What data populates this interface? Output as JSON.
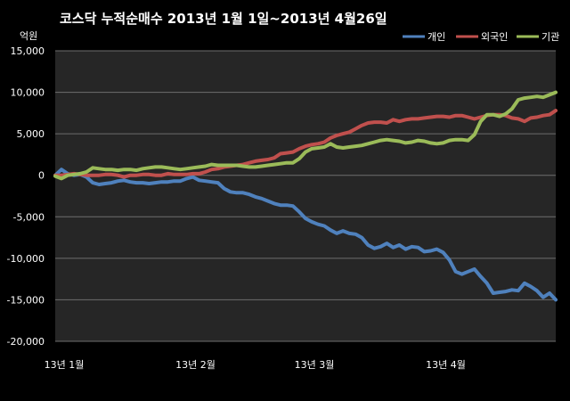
{
  "chart_data": {
    "type": "line",
    "title": "코스닥  누적순매수 2013년 1월 1일~2013년 4월26일",
    "ylabel": "억원",
    "ylim": [
      -20000,
      15000
    ],
    "yticks": [
      15000,
      10000,
      5000,
      0,
      -5000,
      -10000,
      -15000,
      -20000
    ],
    "ytick_labels": [
      "15,000",
      "10,000",
      "5,000",
      "0",
      "-5,000",
      "-10,000",
      "-15,000",
      "-20,000"
    ],
    "xlim": [
      0,
      80
    ],
    "xticks": [
      {
        "pos": 1,
        "label": "13년 1월"
      },
      {
        "pos": 22,
        "label": "13년 2월"
      },
      {
        "pos": 41,
        "label": "13년 3월"
      },
      {
        "pos": 62,
        "label": "13년 4월"
      }
    ],
    "grid": "horizontal",
    "legend_position": "top-right",
    "colors": {
      "background": "#000000",
      "plot_area": "#262626",
      "grid": "#6e6e6e"
    },
    "series": [
      {
        "name": "개인",
        "color": "#4f81bd",
        "values": [
          0,
          700,
          200,
          0,
          100,
          -200,
          -900,
          -1100,
          -1000,
          -900,
          -700,
          -600,
          -800,
          -900,
          -900,
          -1000,
          -900,
          -800,
          -800,
          -700,
          -700,
          -400,
          -200,
          -600,
          -700,
          -800,
          -900,
          -1600,
          -2000,
          -2100,
          -2100,
          -2300,
          -2600,
          -2800,
          -3100,
          -3400,
          -3600,
          -3600,
          -3700,
          -4400,
          -5200,
          -5600,
          -5900,
          -6100,
          -6600,
          -7000,
          -6700,
          -7000,
          -7100,
          -7500,
          -8400,
          -8800,
          -8600,
          -8200,
          -8700,
          -8400,
          -8900,
          -8600,
          -8700,
          -9200,
          -9100,
          -8900,
          -9300,
          -10200,
          -11600,
          -11900,
          -11600,
          -11300,
          -12200,
          -13000,
          -14200,
          -14100,
          -14000,
          -13800,
          -13900,
          -13000,
          -13400,
          -13900,
          -14700,
          -14200,
          -15000
        ]
      },
      {
        "name": "외국인",
        "color": "#c0504d",
        "values": [
          0,
          0,
          100,
          200,
          100,
          0,
          0,
          0,
          100,
          100,
          0,
          -200,
          0,
          0,
          100,
          100,
          0,
          0,
          200,
          100,
          100,
          100,
          200,
          200,
          400,
          700,
          800,
          1000,
          1100,
          1200,
          1300,
          1500,
          1700,
          1800,
          1900,
          2100,
          2600,
          2700,
          2800,
          3200,
          3500,
          3700,
          3800,
          4000,
          4500,
          4800,
          5000,
          5200,
          5600,
          6000,
          6300,
          6400,
          6400,
          6300,
          6700,
          6500,
          6700,
          6800,
          6800,
          6900,
          7000,
          7100,
          7100,
          7000,
          7200,
          7200,
          7000,
          6800,
          7000,
          7200,
          7300,
          7300,
          7200,
          6900,
          6800,
          6500,
          6900,
          7000,
          7200,
          7300,
          7800
        ]
      },
      {
        "name": "기관",
        "color": "#9bbb59",
        "values": [
          -100,
          -400,
          0,
          100,
          200,
          400,
          900,
          800,
          700,
          700,
          600,
          700,
          700,
          600,
          800,
          900,
          1000,
          1000,
          900,
          800,
          700,
          800,
          900,
          1000,
          1100,
          1300,
          1200,
          1200,
          1200,
          1200,
          1100,
          1000,
          1000,
          1100,
          1200,
          1300,
          1400,
          1500,
          1500,
          2000,
          2800,
          3200,
          3300,
          3400,
          3800,
          3400,
          3300,
          3400,
          3500,
          3600,
          3800,
          4000,
          4200,
          4300,
          4200,
          4100,
          3900,
          4000,
          4200,
          4100,
          3900,
          3800,
          3900,
          4200,
          4300,
          4300,
          4200,
          4900,
          6500,
          7300,
          7300,
          7100,
          7400,
          8000,
          9100,
          9300,
          9400,
          9500,
          9400,
          9700,
          10000
        ]
      }
    ]
  }
}
